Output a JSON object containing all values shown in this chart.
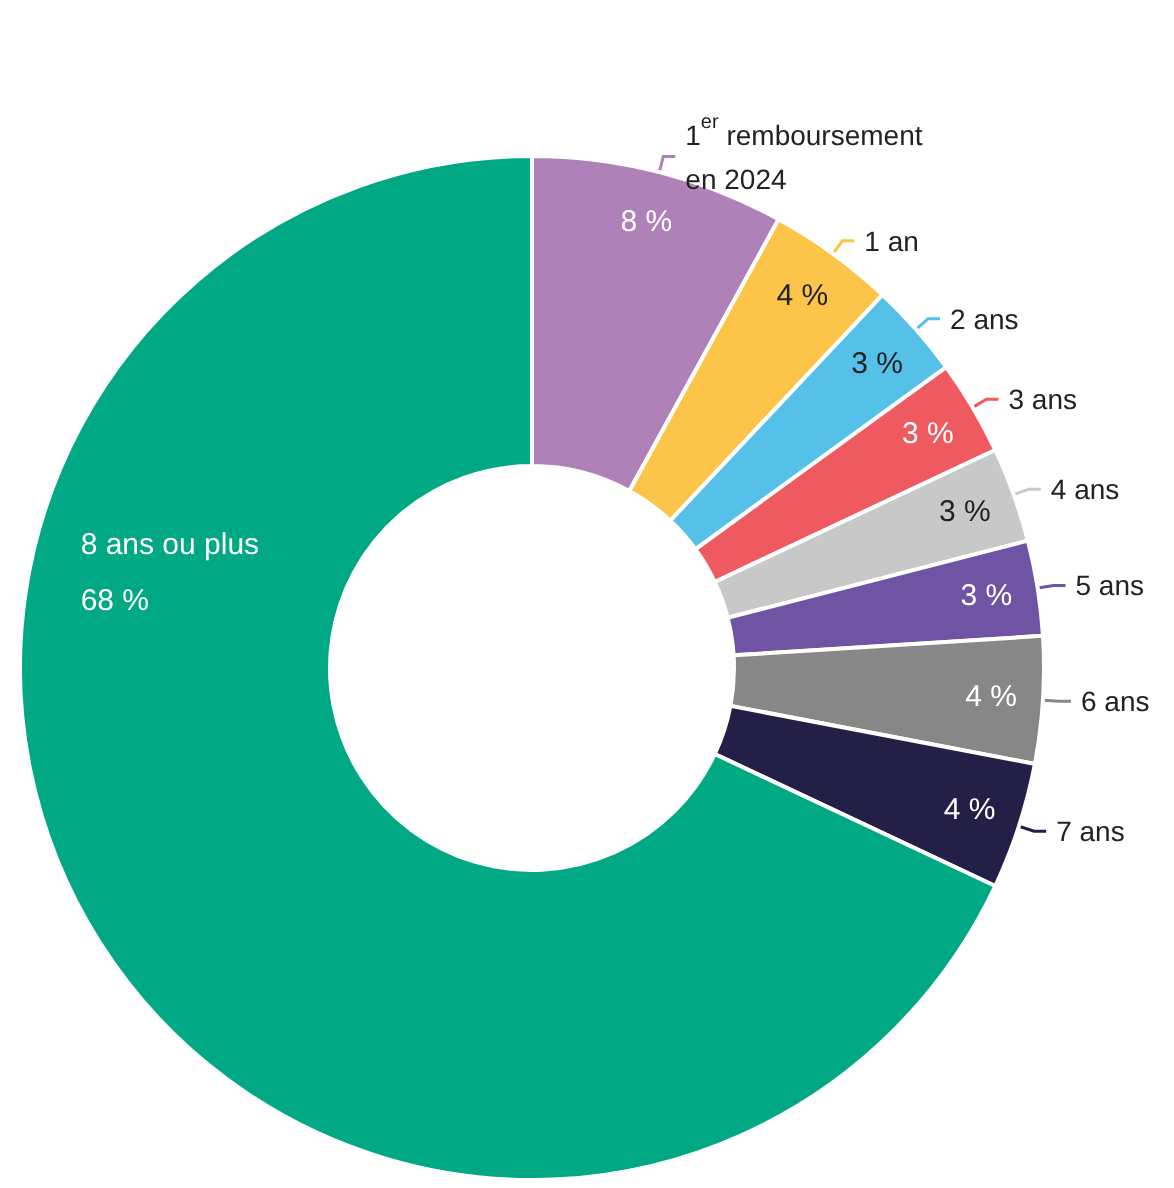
{
  "chart_data": {
    "type": "donut",
    "categories": [
      "1$^{er}$ remboursement en 2024",
      "1 an",
      "2 ans",
      "3 ans",
      "4 ans",
      "5 ans",
      "6 ans",
      "7 ans",
      "8 ans ou plus"
    ],
    "values": [
      8,
      4,
      3,
      3,
      3,
      3,
      4,
      4,
      68
    ],
    "value_labels": [
      "8 %",
      "4 %",
      "3 %",
      "3 %",
      "3 %",
      "3 %",
      "4 %",
      "4 %",
      "68 %"
    ],
    "colors": [
      "#ae82b8",
      "#fcc54a",
      "#55c0e8",
      "#ee5a5f",
      "#c8c8c8",
      "#6f54a4",
      "#878787",
      "#231f46",
      "#00a884"
    ],
    "legend": false
  }
}
